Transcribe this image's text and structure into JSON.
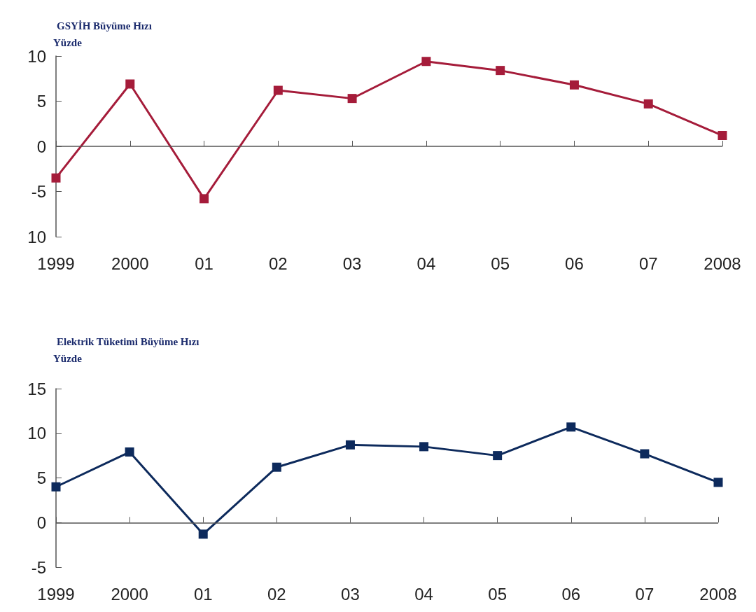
{
  "chart_data": [
    {
      "type": "line",
      "title": "GSYİH Büyüme Hızı",
      "ylabel": "Yüzde",
      "categories": [
        "1999",
        "2000",
        "01",
        "02",
        "03",
        "04",
        "05",
        "06",
        "07",
        "2008"
      ],
      "series": [
        {
          "color": "#a51c3a",
          "values": [
            -3.5,
            6.9,
            -5.8,
            6.2,
            5.3,
            9.4,
            8.4,
            6.8,
            4.7,
            1.2
          ]
        }
      ],
      "ylim": [
        -10,
        10
      ],
      "yticks": [
        {
          "value": -10,
          "label": "10"
        },
        -5,
        0,
        5,
        10
      ],
      "grid": false,
      "marker": "square",
      "line_style": "solid",
      "ref_lines": [
        {
          "axis": "y",
          "value": 0,
          "color": "#555555"
        }
      ]
    },
    {
      "type": "line",
      "title": "Elektrik Tüketimi Büyüme Hızı",
      "ylabel": "Yüzde",
      "categories": [
        "1999",
        "2000",
        "01",
        "02",
        "03",
        "04",
        "05",
        "06",
        "07",
        "2008"
      ],
      "series": [
        {
          "color": "#0d2a5c",
          "values": [
            4.0,
            7.9,
            -1.3,
            6.2,
            8.7,
            8.5,
            7.5,
            10.7,
            7.7,
            4.5
          ]
        }
      ],
      "ylim": [
        -5,
        15
      ],
      "yticks": [
        -5,
        0,
        5,
        10,
        15
      ],
      "grid": false,
      "marker": "square",
      "line_style": "solid",
      "ref_lines": [
        {
          "axis": "y",
          "value": 0,
          "color": "#555555"
        }
      ]
    }
  ]
}
